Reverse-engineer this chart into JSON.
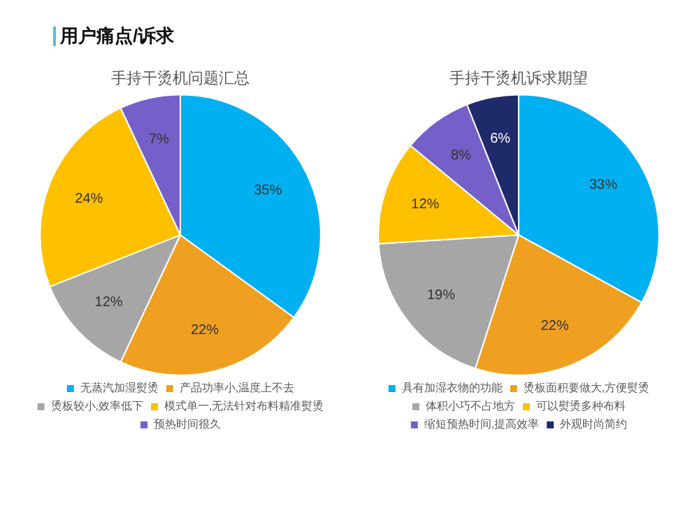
{
  "chart_data": [
    {
      "type": "other",
      "title": "用户痛点/诉求"
    },
    {
      "type": "pie",
      "title": "手持干烫机问题汇总",
      "categories": [
        "无蒸汽加湿熨烫",
        "产品功率小,温度上不去",
        "烫板较小,效率低下",
        "模式单一,无法针对布料精准熨烫",
        "预热时间很久"
      ],
      "values": [
        35,
        22,
        12,
        24,
        7
      ],
      "value_labels": [
        "35%",
        "22%",
        "12%",
        "24%",
        "7%"
      ],
      "colors": [
        "#00b0f0",
        "#f0a020",
        "#a6a6a6",
        "#ffc000",
        "#7460c8"
      ],
      "legend": "bottom"
    },
    {
      "type": "pie",
      "title": "手持干烫机诉求期望",
      "categories": [
        "具有加湿衣物的功能",
        "烫板面积要做大,方便熨烫",
        "体积小巧不占地方",
        "可以熨烫多种布料",
        "缩短预热时间,提高效率",
        "外观时尚简约"
      ],
      "values": [
        33,
        22,
        19,
        12,
        8,
        6
      ],
      "value_labels": [
        "33%",
        "22%",
        "19%",
        "12%",
        "8%",
        "6%"
      ],
      "colors": [
        "#00b0f0",
        "#f0a020",
        "#a6a6a6",
        "#ffc000",
        "#7460c8",
        "#1f2a6b"
      ],
      "legend": "bottom"
    }
  ]
}
